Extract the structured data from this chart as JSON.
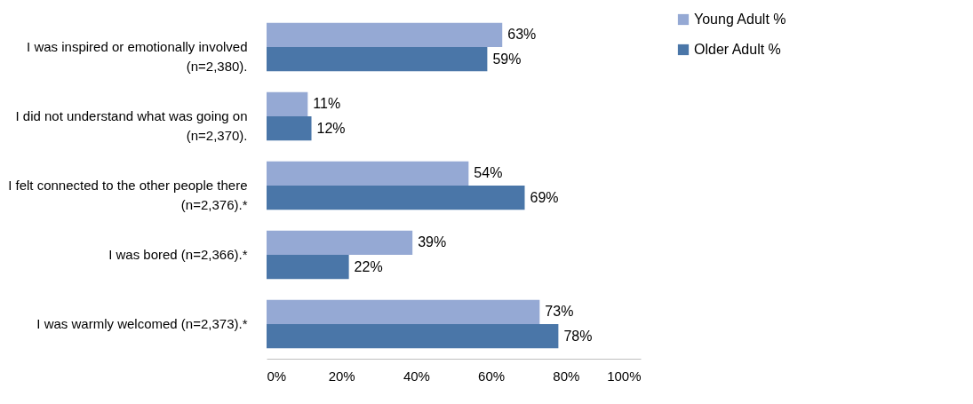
{
  "chart_data": {
    "type": "bar",
    "orientation": "horizontal",
    "categories": [
      "I was inspired or emotionally involved\n(n=2,380).",
      "I did not understand what was going on\n(n=2,370).",
      "I felt connected to the other people there\n(n=2,376).*",
      "I was bored (n=2,366).*",
      "I was warmly welcomed (n=2,373).*"
    ],
    "series": [
      {
        "name": "Young Adult %",
        "color": "#95a9d4",
        "values": [
          63,
          11,
          54,
          39,
          73
        ],
        "value_labels": [
          "63%",
          "11%",
          "54%",
          "39%",
          "73%"
        ]
      },
      {
        "name": "Older Adult %",
        "color": "#4a76a8",
        "values": [
          59,
          12,
          69,
          22,
          78
        ],
        "value_labels": [
          "59%",
          "12%",
          "69%",
          "22%",
          "78%"
        ]
      }
    ],
    "xlim": [
      0,
      100
    ],
    "xticks": [
      {
        "value": 0,
        "label": "0%"
      },
      {
        "value": 20,
        "label": "20%"
      },
      {
        "value": 40,
        "label": "40%"
      },
      {
        "value": 60,
        "label": "60%"
      },
      {
        "value": 80,
        "label": "80%"
      },
      {
        "value": 100,
        "label": "100%"
      }
    ],
    "grid": false,
    "legend": "right"
  }
}
